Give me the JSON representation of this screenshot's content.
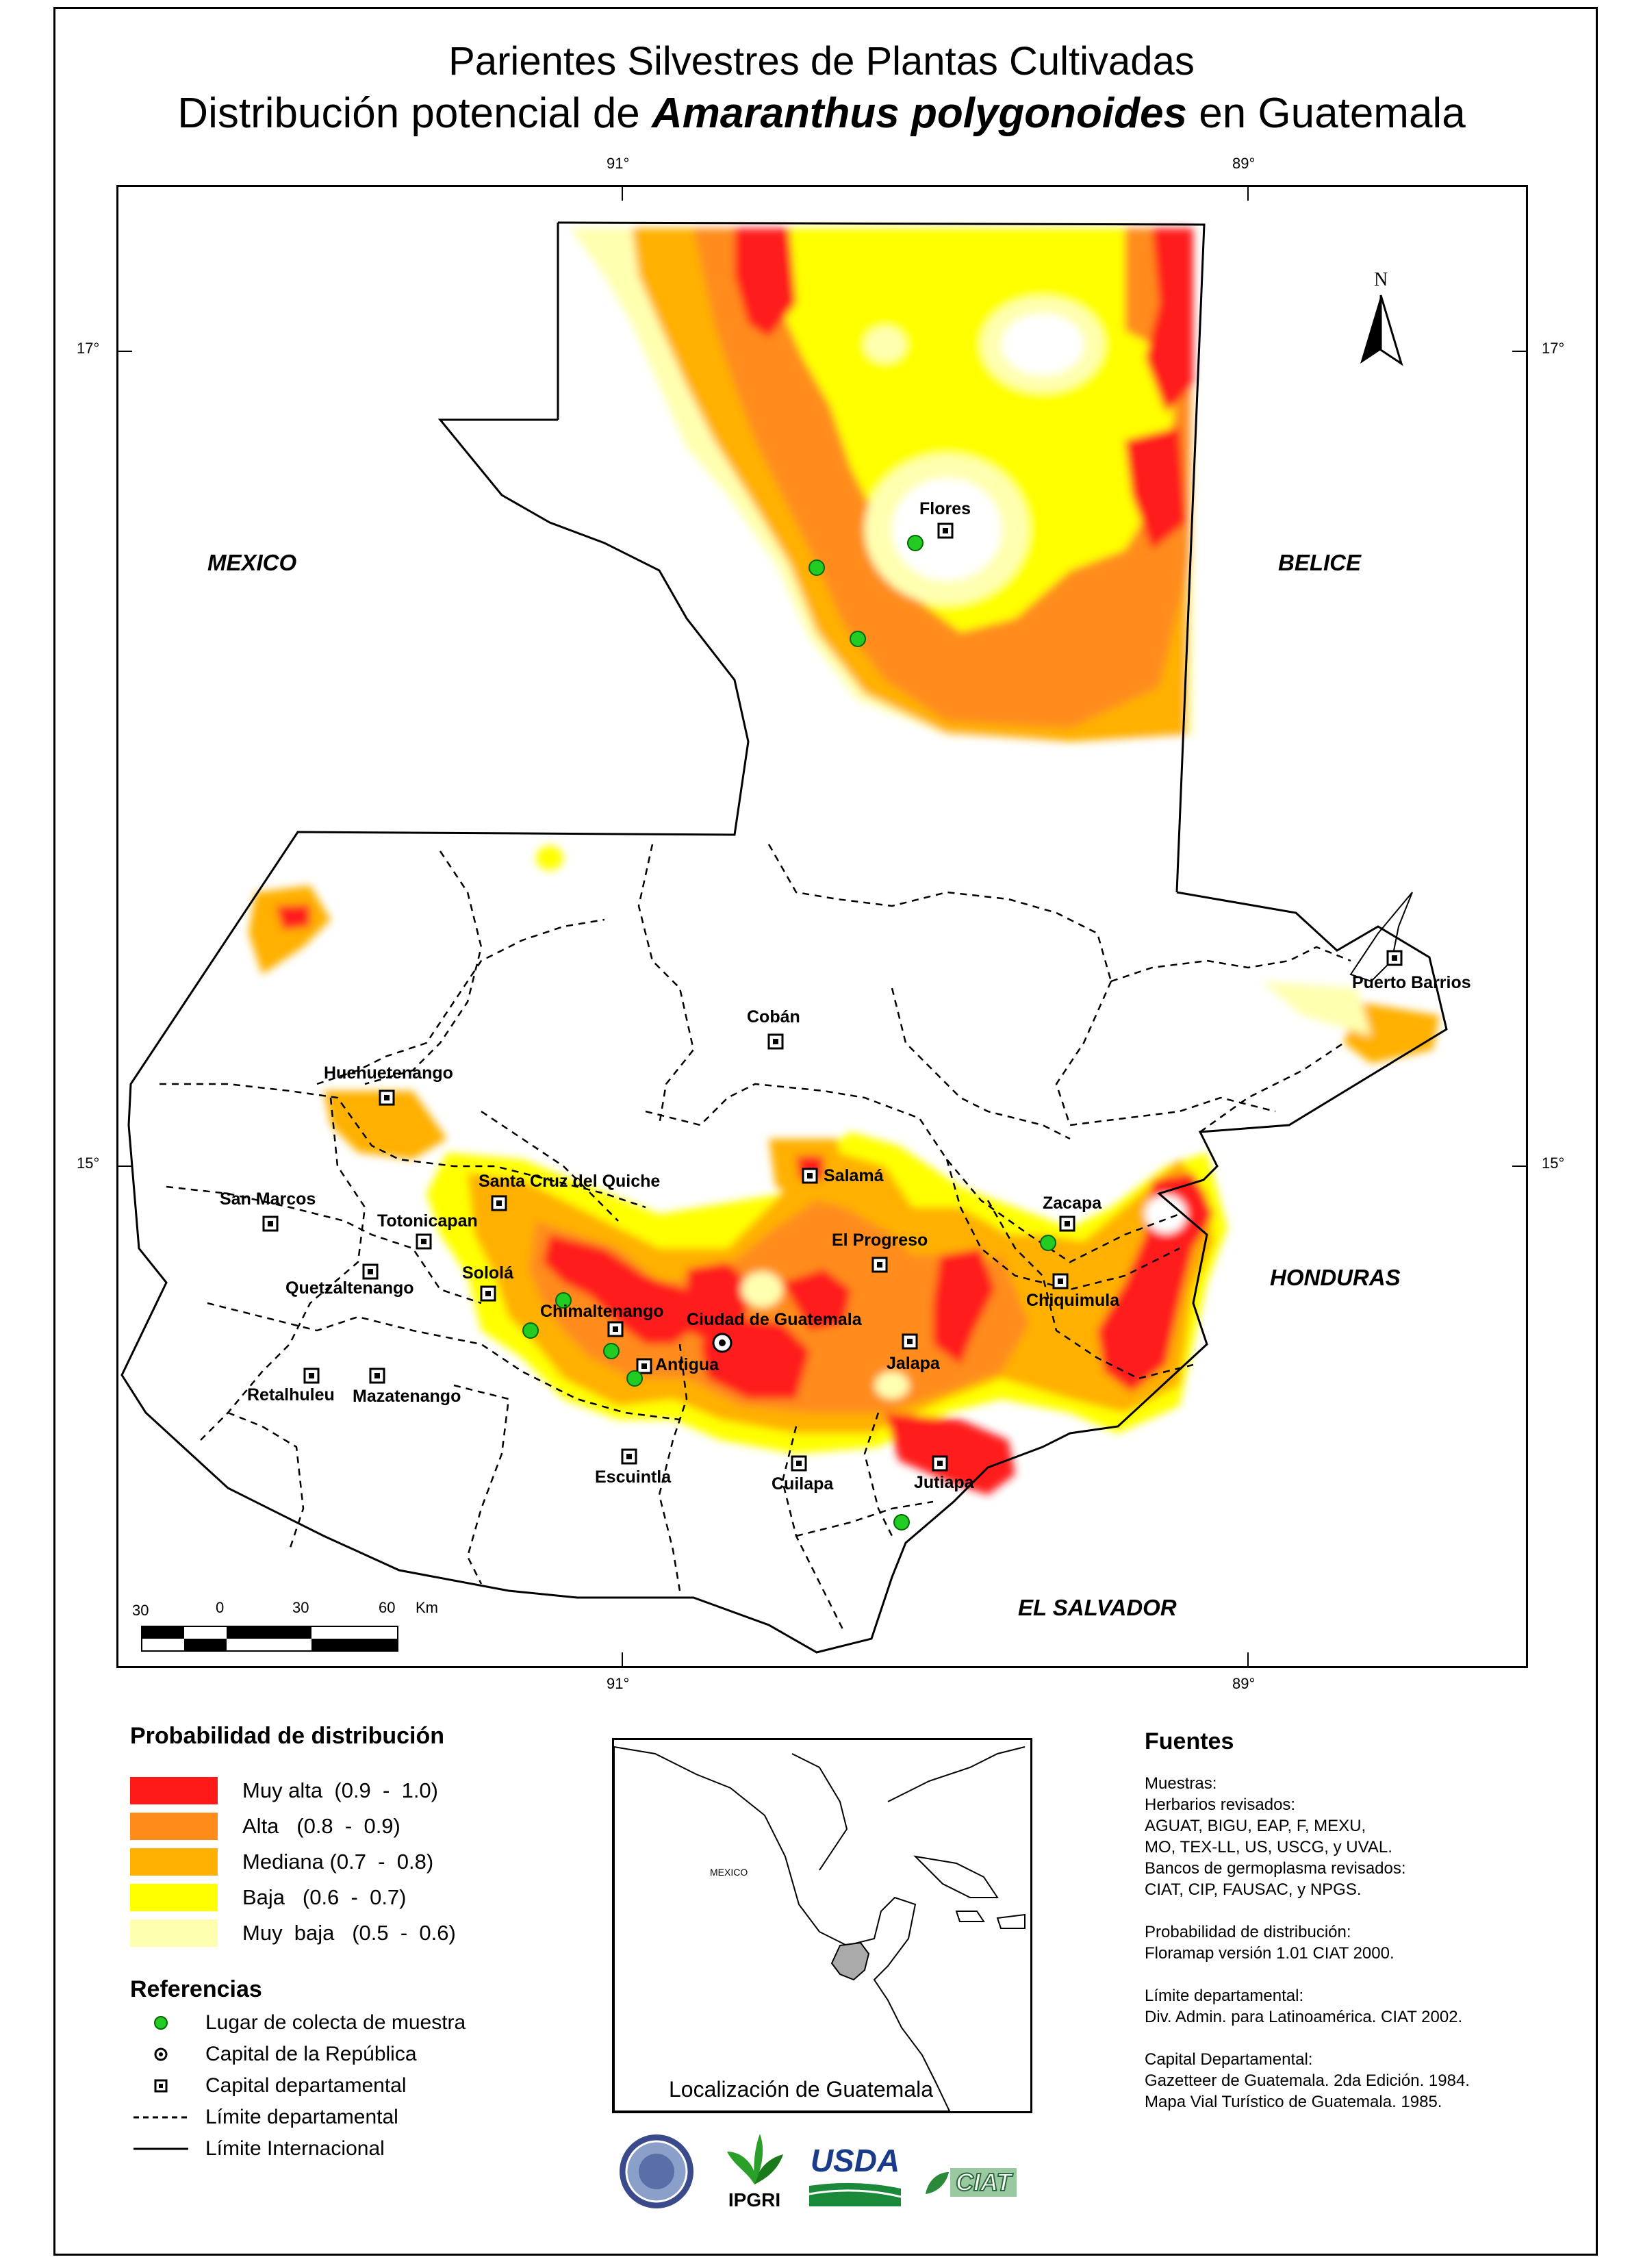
{
  "title": {
    "line1": "Parientes Silvestres de Plantas Cultivadas",
    "line2_pre": "Distribución potencial de ",
    "line2_species": "Amaranthus polygonoides",
    "line2_post": " en Guatemala"
  },
  "graticule": {
    "lon_top_left": "91°",
    "lon_top_right": "89°",
    "lon_bottom_left": "91°",
    "lon_bottom_right": "89°",
    "lat_upper_left": "17°",
    "lat_upper_right": "17°",
    "lat_lower_left": "15°",
    "lat_lower_right": "15°"
  },
  "north_arrow": "N",
  "countries": {
    "mexico": "MEXICO",
    "belice": "BELICE",
    "honduras": "HONDURAS",
    "el_salvador": "EL SALVADOR"
  },
  "cities": {
    "flores": "Flores",
    "puerto_barrios": "Puerto Barrios",
    "coban": "Cobán",
    "huehuetenango": "Huehuetenango",
    "salama": "Salamá",
    "san_marcos": "San Marcos",
    "santa_cruz": "Santa Cruz del Quiche",
    "totonicapan": "Totonicapan",
    "zacapa": "Zacapa",
    "el_progreso": "El Progreso",
    "quetzaltenango": "Quetzaltenango",
    "solola": "Sololá",
    "chiquimula": "Chiquimula",
    "chimaltenango": "Chimaltenango",
    "ciudad_guatemala": "Ciudad de Guatemala",
    "antigua": "Antigua",
    "jalapa": "Jalapa",
    "retalhuleu": "Retalhuleu",
    "mazatenango": "Mazatenango",
    "escuintla": "Escuintla",
    "cuilapa": "Cuilapa",
    "jutiapa": "Jutiapa"
  },
  "scale_bar": {
    "labels": [
      "30",
      "0",
      "30",
      "60"
    ],
    "unit": "Km"
  },
  "legend_probability": {
    "heading": "Probabilidad de distribución",
    "items": [
      {
        "label": "Muy alta  (0.9  -  1.0)",
        "color": "#ff1a1a"
      },
      {
        "label": "Alta   (0.8  -  0.9)",
        "color": "#ff8c1a"
      },
      {
        "label": "Mediana (0.7  -  0.8)",
        "color": "#ffb000"
      },
      {
        "label": "Baja   (0.6  -  0.7)",
        "color": "#ffff00"
      },
      {
        "label": "Muy  baja   (0.5  -  0.6)",
        "color": "#ffffb0"
      }
    ]
  },
  "legend_references": {
    "heading": "Referencias",
    "items": [
      {
        "label": "Lugar de colecta de muestra",
        "symbol": "green-dot"
      },
      {
        "label": "Capital de la República",
        "symbol": "circle-dot"
      },
      {
        "label": "Capital departamental",
        "symbol": "square-dot"
      },
      {
        "label": "Límite departamental",
        "symbol": "dashed-line"
      },
      {
        "label": "Límite Internacional",
        "symbol": "solid-line"
      }
    ]
  },
  "location_inset": {
    "mexico_label": "MEXICO",
    "caption": "Localización de Guatemala"
  },
  "sources": {
    "heading": "Fuentes",
    "blocks": [
      [
        "Muestras:",
        "Herbarios revisados:",
        "AGUAT, BIGU, EAP, F, MEXU,",
        "MO, TEX-LL, US, USCG, y UVAL.",
        "Bancos de germoplasma revisados:",
        "CIAT, CIP,  FAUSAC, y NPGS."
      ],
      [
        "Probabilidad de distribución:",
        "Floramap versión 1.01 CIAT 2000."
      ],
      [
        "Límite departamental:",
        "Div. Admin. para Latinoamérica.  CIAT 2002."
      ],
      [
        "Capital Departamental:",
        "Gazetteer de Guatemala.  2da  Edición.  1984.",
        "Mapa Vial Turístico de Guatemala.  1985."
      ]
    ]
  },
  "logos": {
    "ipgri": "IPGRI",
    "usda": "USDA",
    "ciat": "CIAT"
  },
  "colors": {
    "collection_point": "#22cc22",
    "very_high": "#ff1a1a",
    "high": "#ff8c1a",
    "medium": "#ffb000",
    "low": "#ffff00",
    "very_low": "#ffffb0"
  }
}
